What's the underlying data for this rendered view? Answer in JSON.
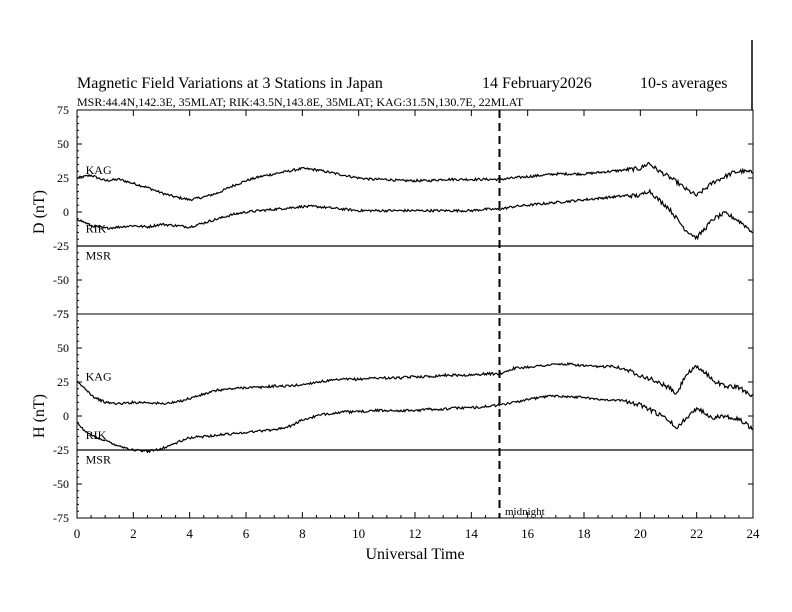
{
  "chart_data": {
    "type": "line",
    "title": "Magnetic Field Variations at 3 Stations in Japan",
    "date": "14 February2026",
    "averaging": "10-s averages",
    "subtitle": "MSR:44.4N,142.3E, 35MLAT;  RIK:43.5N,143.8E, 35MLAT;  KAG:31.5N,130.7E, 22MLAT",
    "xlabel": "Universal Time",
    "xlim": [
      0,
      24
    ],
    "xticks": [
      0,
      2,
      4,
      6,
      8,
      10,
      12,
      14,
      16,
      18,
      20,
      22,
      24
    ],
    "midnight": {
      "x": 15,
      "label": "midnight"
    },
    "panels": [
      {
        "name": "D",
        "ylabel": "D (nT)",
        "ylim": [
          -75,
          75
        ],
        "yticks": [
          75,
          50,
          25,
          0,
          -25,
          -50,
          -75
        ],
        "series": [
          {
            "name": "KAG",
            "label_x": 0.2,
            "label_y": 31,
            "x": [
              0,
              0.5,
              1,
              1.5,
              2,
              2.5,
              3,
              3.5,
              4,
              4.5,
              5,
              5.5,
              6,
              6.5,
              7,
              7.5,
              8,
              8.5,
              9,
              9.5,
              10,
              10.5,
              11,
              11.5,
              12,
              12.5,
              13,
              13.5,
              14,
              14.5,
              15,
              15.5,
              16,
              16.5,
              17,
              17.5,
              18,
              18.5,
              19,
              19.5,
              20,
              20.3,
              20.6,
              21,
              21.3,
              21.6,
              22,
              22.3,
              22.6,
              23,
              23.3,
              23.6,
              24
            ],
            "y": [
              25,
              27,
              23,
              24,
              21,
              18,
              14,
              11,
              9,
              11,
              14,
              19,
              23,
              26,
              28,
              30,
              32,
              31,
              29,
              27,
              25,
              24,
              24,
              23,
              23,
              23,
              24,
              24,
              24,
              24,
              24,
              25,
              26,
              27,
              28,
              28,
              28,
              29,
              30,
              31,
              32,
              36,
              31,
              26,
              22,
              17,
              12,
              17,
              22,
              26,
              29,
              30,
              29
            ]
          },
          {
            "name": "RIK",
            "label_x": 0.2,
            "label_y": -12,
            "x": [
              0,
              0.5,
              1,
              1.5,
              2,
              2.5,
              3,
              3.5,
              4,
              4.5,
              5,
              5.5,
              6,
              6.5,
              7,
              7.5,
              8,
              8.5,
              9,
              9.5,
              10,
              10.5,
              11,
              11.5,
              12,
              12.5,
              13,
              13.5,
              14,
              14.5,
              15,
              15.5,
              16,
              16.5,
              17,
              17.5,
              18,
              18.5,
              19,
              19.5,
              20,
              20.3,
              20.6,
              21,
              21.3,
              21.6,
              22,
              22.3,
              22.6,
              23,
              23.3,
              23.6,
              24
            ],
            "y": [
              -5,
              -10,
              -12,
              -11,
              -10,
              -11,
              -9,
              -10,
              -11,
              -8,
              -5,
              -2,
              0,
              1,
              2,
              3,
              4,
              4,
              3,
              2,
              1,
              1,
              1,
              1,
              1,
              1,
              1,
              1,
              1,
              2,
              2,
              4,
              5,
              6,
              7,
              8,
              9,
              10,
              11,
              12,
              12,
              16,
              10,
              3,
              -5,
              -13,
              -19,
              -12,
              -5,
              -1,
              -4,
              -8,
              -15
            ]
          },
          {
            "name": "MSR",
            "label_x": 0.2,
            "label_y": -32,
            "x": [
              0,
              24
            ],
            "y": [
              -25,
              -25
            ]
          }
        ]
      },
      {
        "name": "H",
        "ylabel": "H (nT)",
        "ylim": [
          -75,
          75
        ],
        "yticks": [
          75,
          50,
          25,
          0,
          -25,
          -50,
          -75
        ],
        "series": [
          {
            "name": "KAG",
            "label_x": 0.2,
            "label_y": 29,
            "x": [
              0,
              0.3,
              0.6,
              1,
              1.5,
              2,
              2.5,
              3,
              3.5,
              4,
              4.5,
              5,
              5.5,
              6,
              6.5,
              7,
              7.5,
              8,
              8.5,
              9,
              9.5,
              10,
              10.5,
              11,
              11.5,
              12,
              12.5,
              13,
              13.5,
              14,
              14.5,
              15,
              15.5,
              16,
              16.5,
              17,
              17.5,
              18,
              18.5,
              19,
              19.5,
              20,
              20.5,
              21,
              21.3,
              21.6,
              22,
              22.3,
              22.6,
              23,
              23.5,
              24
            ],
            "y": [
              25,
              20,
              14,
              10,
              9,
              10,
              10,
              9,
              10,
              13,
              16,
              19,
              20,
              21,
              21,
              22,
              22,
              23,
              25,
              26,
              27,
              27,
              28,
              28,
              28,
              29,
              29,
              30,
              30,
              30,
              31,
              31,
              35,
              36,
              37,
              38,
              38,
              37,
              36,
              37,
              34,
              30,
              26,
              21,
              16,
              30,
              36,
              32,
              26,
              22,
              21,
              15
            ]
          },
          {
            "name": "RIK",
            "label_x": 0.2,
            "label_y": -14,
            "x": [
              0,
              0.3,
              0.6,
              1,
              1.5,
              2,
              2.5,
              3,
              3.5,
              4,
              4.5,
              5,
              5.5,
              6,
              6.5,
              7,
              7.5,
              8,
              8.5,
              9,
              9.5,
              10,
              10.5,
              11,
              11.5,
              12,
              12.5,
              13,
              13.5,
              14,
              14.5,
              15,
              15.5,
              16,
              16.5,
              17,
              17.5,
              18,
              18.5,
              19,
              19.5,
              20,
              20.5,
              21,
              21.3,
              21.6,
              22,
              22.3,
              22.6,
              23,
              23.5,
              24
            ],
            "y": [
              -5,
              -12,
              -15,
              -18,
              -22,
              -25,
              -26,
              -24,
              -20,
              -16,
              -15,
              -14,
              -13,
              -12,
              -11,
              -10,
              -8,
              -3,
              0,
              2,
              3,
              3,
              4,
              4,
              4,
              4,
              5,
              5,
              6,
              6,
              7,
              8,
              10,
              12,
              14,
              15,
              14,
              14,
              12,
              12,
              11,
              8,
              3,
              -3,
              -9,
              -2,
              6,
              2,
              -1,
              0,
              -2,
              -10
            ]
          },
          {
            "name": "MSR",
            "label_x": 0.2,
            "label_y": -32,
            "x": [
              0,
              24
            ],
            "y": [
              -25,
              -25
            ]
          }
        ]
      }
    ]
  }
}
